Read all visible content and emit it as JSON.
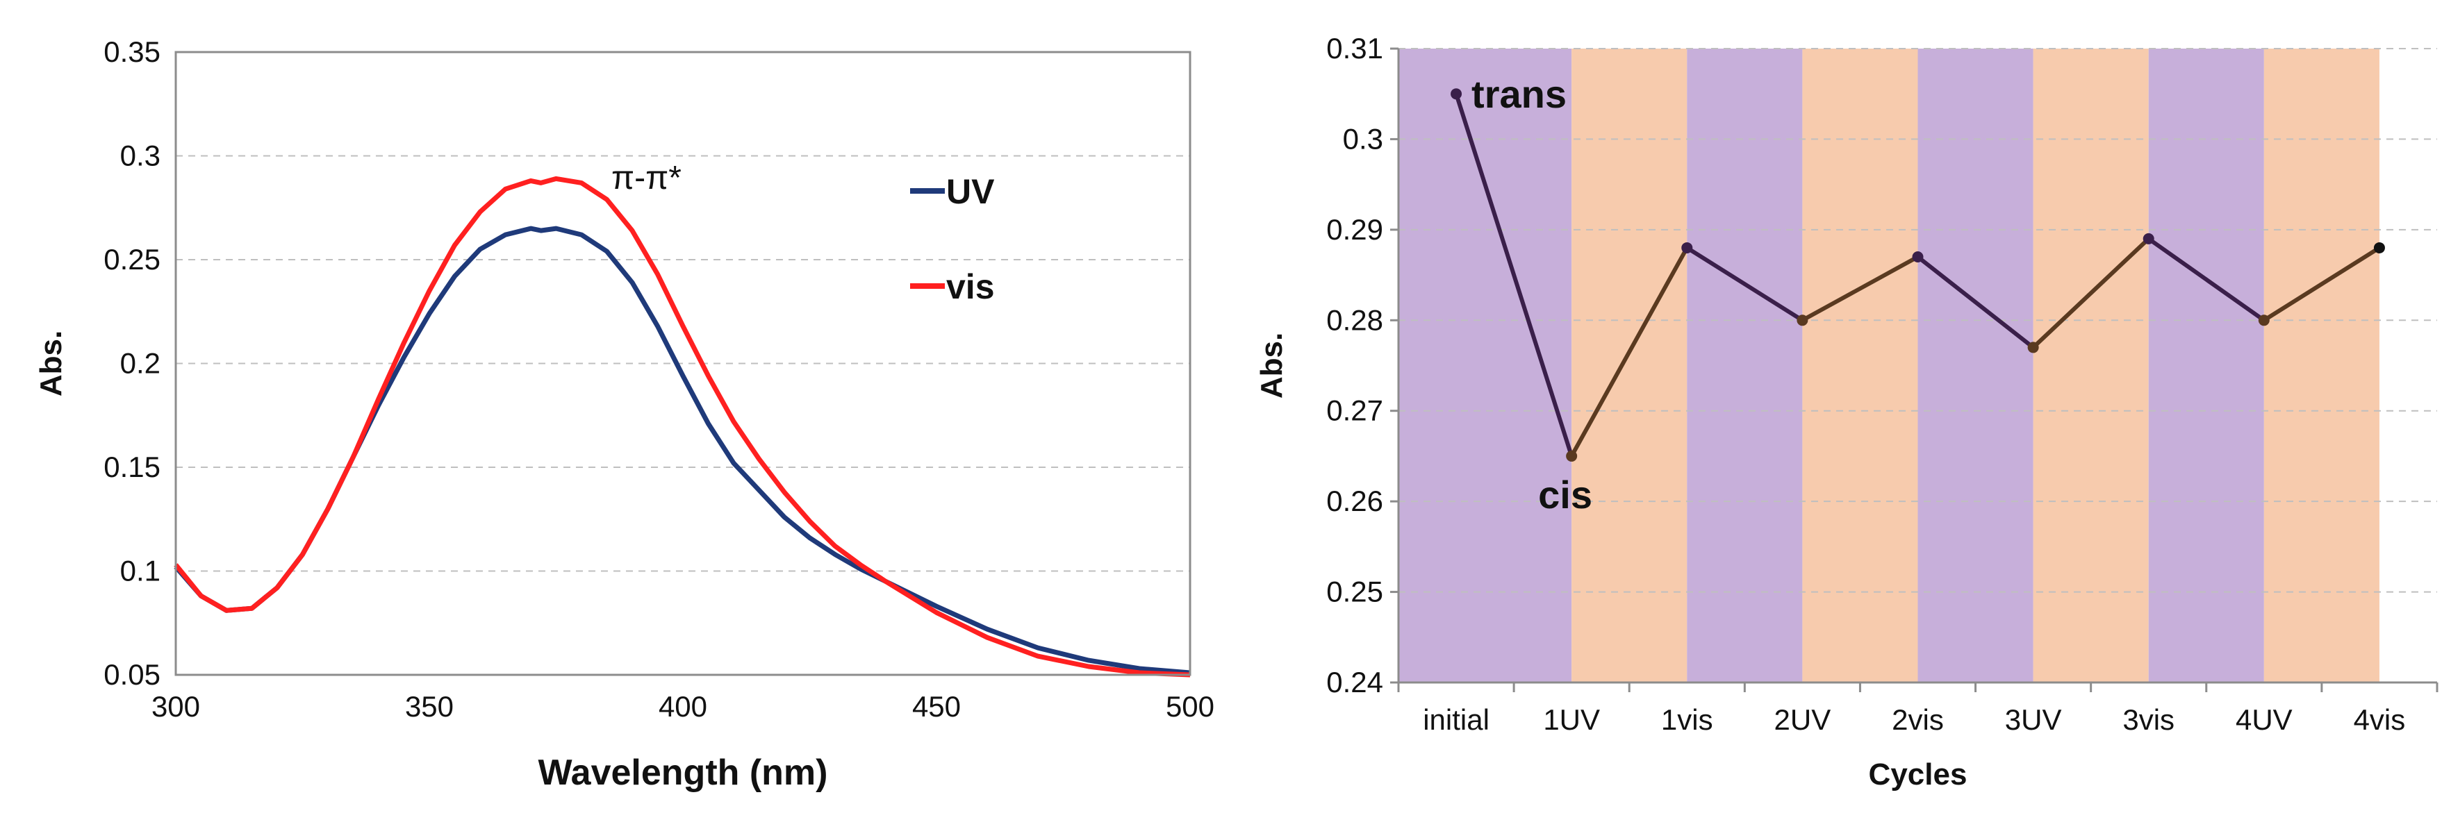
{
  "chart_data": [
    {
      "type": "line",
      "title": "",
      "xlabel": "Wavelength (nm)",
      "ylabel": "Abs.",
      "xlim": [
        300,
        500
      ],
      "ylim": [
        0.05,
        0.35
      ],
      "xticks": [
        300,
        350,
        400,
        450,
        500
      ],
      "yticks": [
        0.05,
        0.1,
        0.15,
        0.2,
        0.25,
        0.3,
        0.35
      ],
      "xtick_labels": [
        "300",
        "350",
        "400",
        "450",
        "500"
      ],
      "ytick_labels": [
        "0.05",
        "0.1",
        "0.15",
        "0.2",
        "0.25",
        "0.3",
        "0.35"
      ],
      "grid": "horizontal dashed",
      "legend_position": "top-right",
      "annotation": "π-π*",
      "series": [
        {
          "name": "UV",
          "color": "#1f3a7a",
          "x": [
            300,
            305,
            310,
            315,
            320,
            325,
            330,
            335,
            340,
            345,
            350,
            355,
            360,
            365,
            370,
            372,
            375,
            380,
            385,
            390,
            395,
            400,
            405,
            410,
            415,
            420,
            425,
            430,
            435,
            440,
            450,
            460,
            470,
            480,
            490,
            500
          ],
          "y": [
            0.102,
            0.088,
            0.081,
            0.082,
            0.092,
            0.108,
            0.13,
            0.155,
            0.18,
            0.203,
            0.224,
            0.242,
            0.255,
            0.262,
            0.265,
            0.264,
            0.265,
            0.262,
            0.254,
            0.239,
            0.218,
            0.194,
            0.171,
            0.152,
            0.139,
            0.126,
            0.116,
            0.108,
            0.101,
            0.095,
            0.083,
            0.072,
            0.063,
            0.057,
            0.053,
            0.051
          ]
        },
        {
          "name": "vis",
          "color": "#ff2020",
          "x": [
            300,
            305,
            310,
            315,
            320,
            325,
            330,
            335,
            340,
            345,
            350,
            355,
            360,
            365,
            370,
            372,
            375,
            380,
            385,
            390,
            395,
            400,
            405,
            410,
            415,
            420,
            425,
            430,
            435,
            440,
            450,
            460,
            470,
            480,
            490,
            500
          ],
          "y": [
            0.103,
            0.088,
            0.081,
            0.082,
            0.092,
            0.108,
            0.13,
            0.155,
            0.183,
            0.21,
            0.235,
            0.257,
            0.273,
            0.284,
            0.288,
            0.287,
            0.289,
            0.287,
            0.279,
            0.264,
            0.243,
            0.218,
            0.194,
            0.172,
            0.154,
            0.138,
            0.124,
            0.112,
            0.103,
            0.095,
            0.08,
            0.068,
            0.059,
            0.054,
            0.051,
            0.05
          ]
        }
      ]
    },
    {
      "type": "line",
      "title": "",
      "xlabel": "Cycles",
      "ylabel": "Abs.",
      "ylim": [
        0.24,
        0.31
      ],
      "yticks": [
        0.24,
        0.25,
        0.26,
        0.27,
        0.28,
        0.29,
        0.3,
        0.31
      ],
      "ytick_labels": [
        "0.24",
        "0.25",
        "0.26",
        "0.27",
        "0.28",
        "0.29",
        "0.3",
        "0.31"
      ],
      "categories": [
        "initial",
        "1UV",
        "1vis",
        "2UV",
        "2vis",
        "3UV",
        "3vis",
        "4UV",
        "4vis"
      ],
      "grid": "horizontal dashed",
      "background_bands": {
        "pattern": [
          "uv",
          "vis",
          "uv",
          "vis",
          "uv",
          "vis",
          "uv",
          "vis"
        ],
        "colors": {
          "uv": "#c7afda",
          "vis": "#f7cbad"
        }
      },
      "series": [
        {
          "name": "Abs.",
          "color_uv_segment": "#3a1f4a",
          "color_vis_segment": "#5a3a20",
          "values": [
            0.305,
            0.265,
            0.288,
            0.28,
            0.287,
            0.277,
            0.289,
            0.28,
            0.288
          ]
        }
      ],
      "annotations": [
        {
          "text": "trans",
          "category": "initial"
        },
        {
          "text": "cis",
          "category": "1UV"
        }
      ]
    }
  ]
}
